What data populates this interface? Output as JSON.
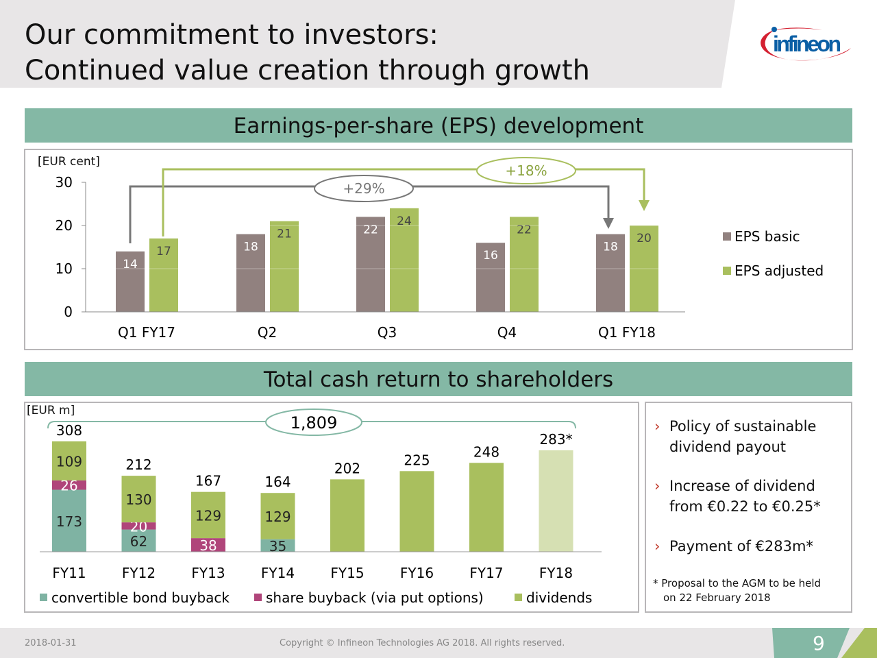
{
  "header": {
    "title_line1": "Our commitment to investors:",
    "title_line2": "Continued value creation through growth",
    "logo_text": "infineon"
  },
  "eps_section": {
    "title": "Earnings-per-share (EPS) development",
    "unit": "[EUR cent]"
  },
  "cash_section": {
    "title": "Total cash return to shareholders",
    "unit": "[EUR m]"
  },
  "colors": {
    "eps_basic": "#91817f",
    "eps_adjusted": "#a9bf5e",
    "convertible": "#7fb3a3",
    "share_buyback": "#b0457a",
    "dividends": "#a9bf5e",
    "dividends_proposal": "#d6e0b3",
    "band": "#84b8a5"
  },
  "chart_data": [
    {
      "type": "bar",
      "ylim": [
        0,
        30
      ],
      "yticks": [
        "0",
        "10",
        "20",
        "30"
      ],
      "categories": [
        "Q1 FY17",
        "Q2",
        "Q3",
        "Q4",
        "Q1 FY18"
      ],
      "series": [
        {
          "name": "EPS basic",
          "values": [
            14,
            18,
            22,
            16,
            18
          ]
        },
        {
          "name": "EPS adjusted",
          "values": [
            17,
            21,
            24,
            22,
            20
          ]
        }
      ],
      "legend": "right",
      "annotations": [
        {
          "text": "+29%",
          "series": "EPS basic"
        },
        {
          "text": "+18%",
          "series": "EPS adjusted"
        }
      ]
    },
    {
      "type": "bar",
      "stacked": true,
      "categories": [
        "FY11",
        "FY12",
        "FY13",
        "FY14",
        "FY15",
        "FY16",
        "FY17",
        "FY18"
      ],
      "series": [
        {
          "name": "convertible bond buyback",
          "values": [
            173,
            62,
            0,
            35,
            0,
            0,
            0,
            0
          ]
        },
        {
          "name": "share buyback (via put options)",
          "values": [
            26,
            20,
            38,
            0,
            0,
            0,
            0,
            0
          ]
        },
        {
          "name": "dividends",
          "values": [
            109,
            130,
            129,
            129,
            202,
            225,
            248,
            283
          ]
        }
      ],
      "totals": [
        "308",
        "212",
        "167",
        "164",
        "202",
        "225",
        "248",
        "283*"
      ],
      "annotations": [
        {
          "text": "1,809"
        }
      ],
      "legend": "bottom"
    }
  ],
  "bullets": [
    "Policy of sustainable dividend payout",
    "Increase of dividend from €0.22 to €0.25*",
    "Payment of €283m*"
  ],
  "bullet_marker": "›",
  "footnote_line1": "* Proposal to the AGM to be held",
  "footnote_line2": "on 22 February 2018",
  "footer": {
    "date": "2018-01-31",
    "copyright": "Copyright © Infineon Technologies AG 2018. All rights reserved.",
    "page": "9"
  }
}
